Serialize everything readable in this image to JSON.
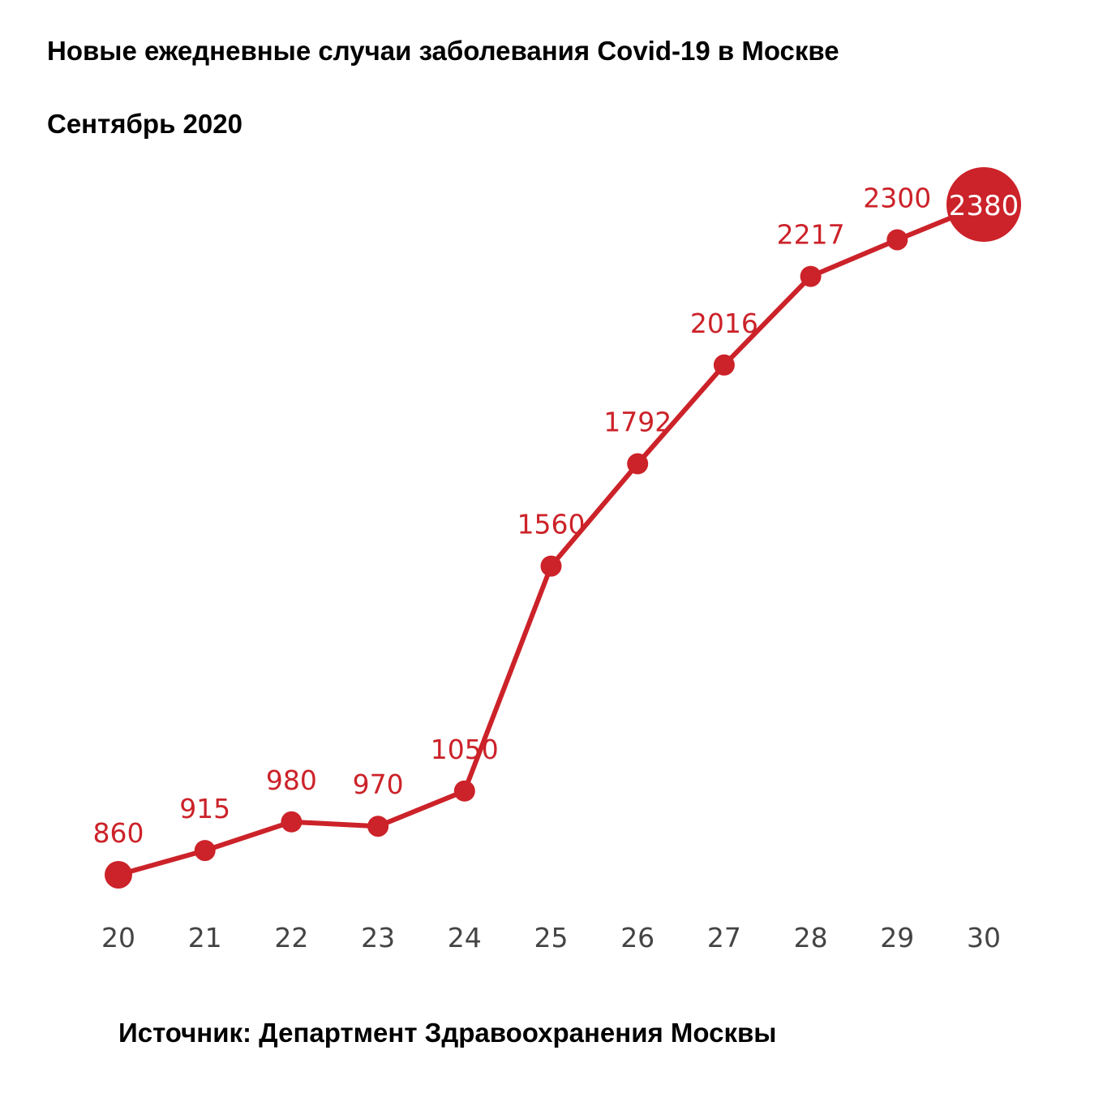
{
  "title": "Новые ежедневные случаи заболевания Covid-19 в Москве",
  "subtitle": "Сентябрь 2020",
  "source": "Источник: Департмент Здравоохранения Москвы",
  "colors": {
    "line": "#cc2229",
    "label": "#cc2229",
    "axis_text": "#444444",
    "highlight_text": "#ffffff"
  },
  "chart_data": {
    "type": "line",
    "title": "Новые ежедневные случаи заболевания Covid-19 в Москве",
    "subtitle": "Сентябрь 2020",
    "categories": [
      "20",
      "21",
      "22",
      "23",
      "24",
      "25",
      "26",
      "27",
      "28",
      "29",
      "30"
    ],
    "series": [
      {
        "values": [
          860,
          915,
          980,
          970,
          1050,
          1560,
          1792,
          2016,
          2217,
          2300,
          2380
        ],
        "labels": [
          "860",
          "915",
          "980",
          "970",
          "1050",
          "1560",
          "1792",
          "2016",
          "2217",
          "2300",
          "2380"
        ]
      }
    ],
    "xlabel": "",
    "ylabel": "",
    "grid": false,
    "legend": "none",
    "highlight_last_point": true
  }
}
